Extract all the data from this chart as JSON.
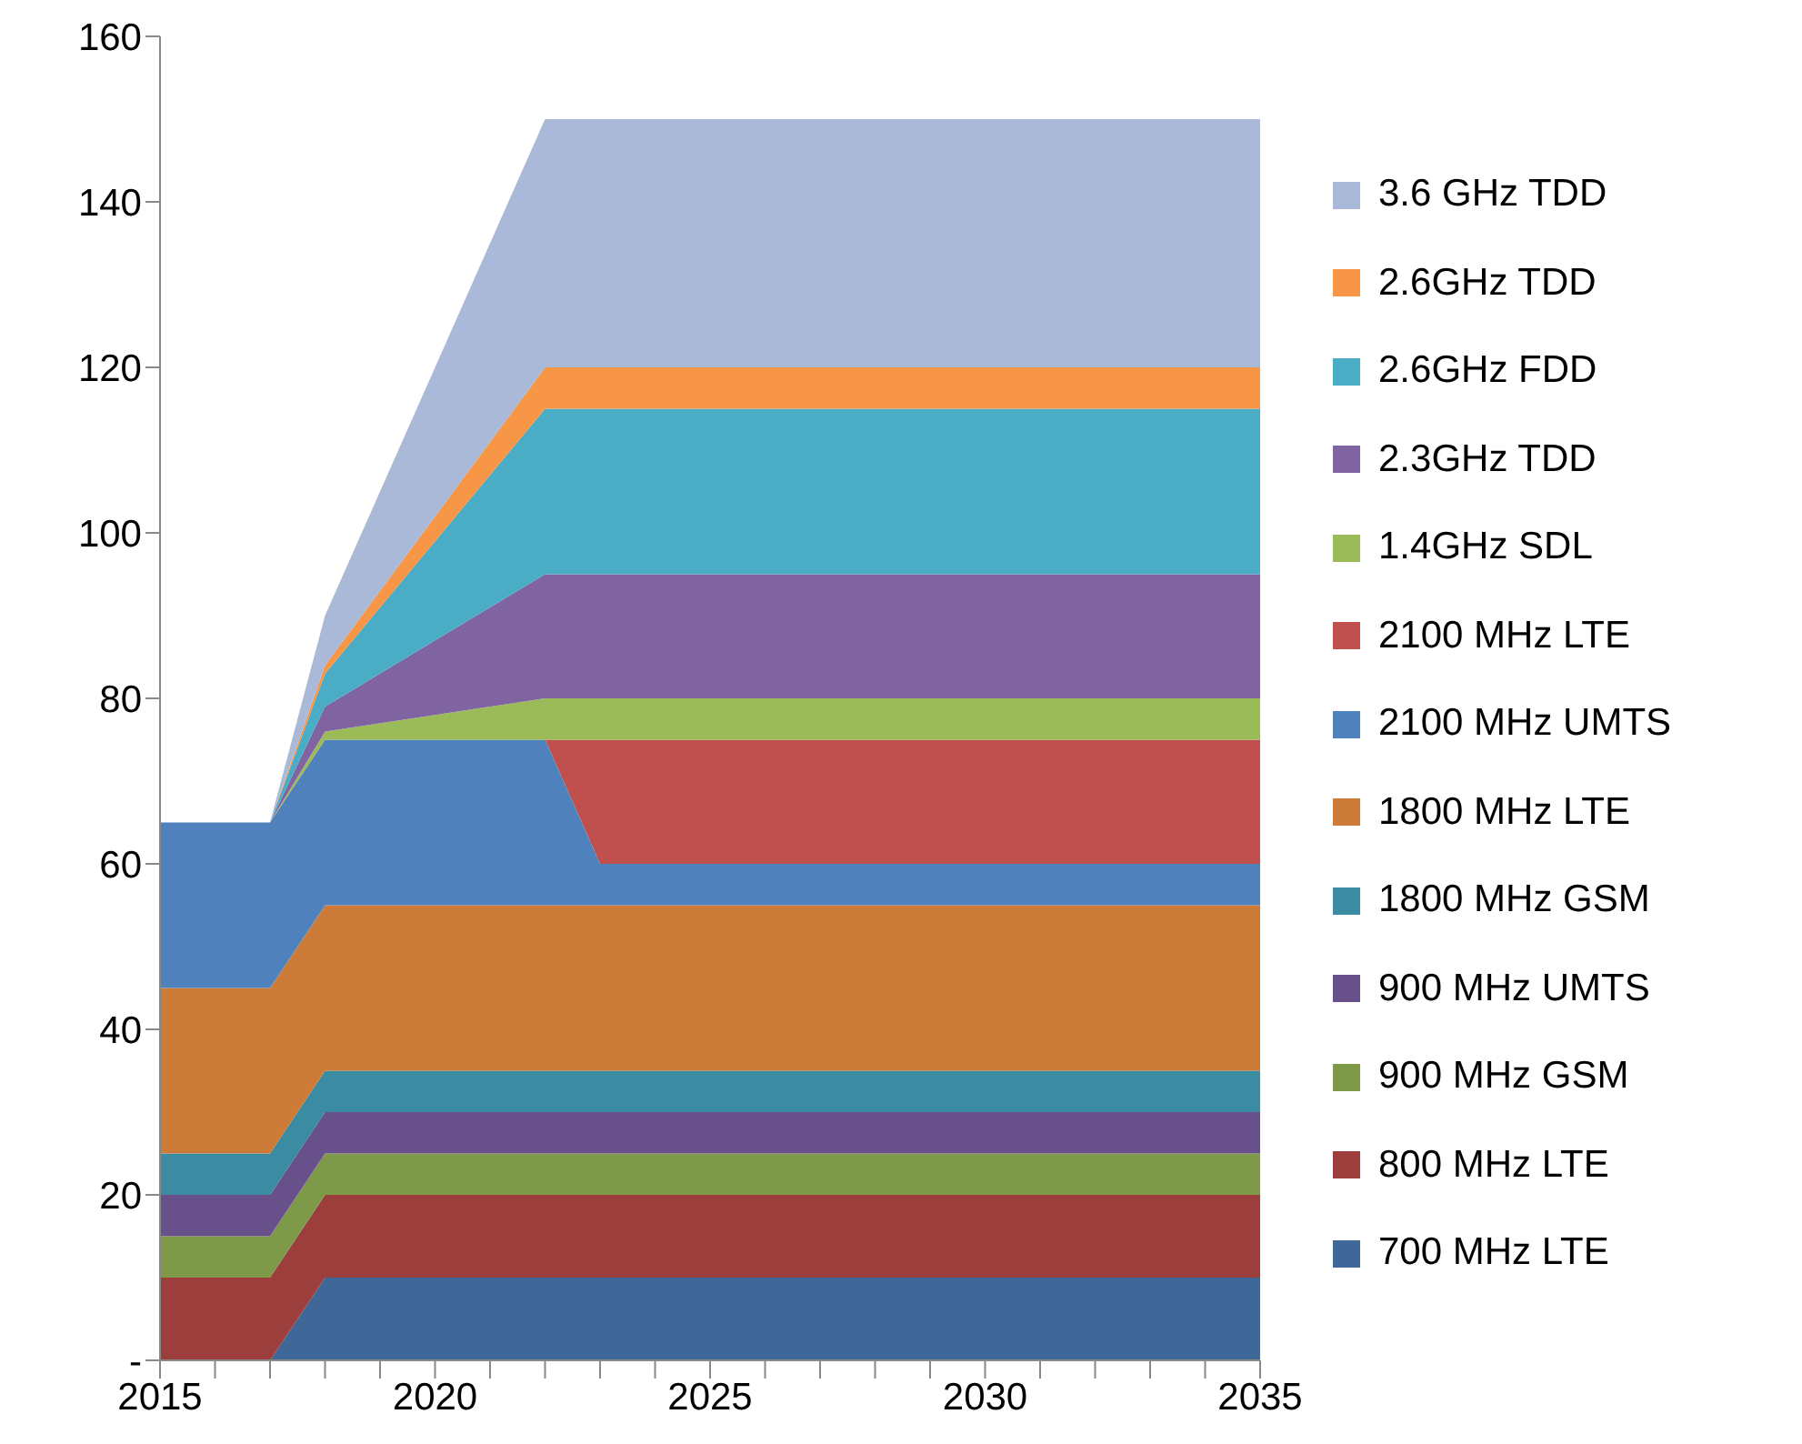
{
  "chart_data": {
    "type": "area",
    "stacked": true,
    "x": [
      2015,
      2017,
      2018,
      2022,
      2023,
      2035
    ],
    "series": [
      {
        "name": "700 MHz LTE",
        "color": "#3f6797",
        "values": [
          0,
          0,
          10,
          10,
          10,
          10
        ]
      },
      {
        "name": "800 MHz LTE",
        "color": "#9c3f3c",
        "values": [
          10,
          10,
          10,
          10,
          10,
          10
        ]
      },
      {
        "name": "900 MHz GSM",
        "color": "#7e9a48",
        "values": [
          5,
          5,
          5,
          5,
          5,
          5
        ]
      },
      {
        "name": "900 MHz UMTS",
        "color": "#68518a",
        "values": [
          5,
          5,
          5,
          5,
          5,
          5
        ]
      },
      {
        "name": "1800 MHz GSM",
        "color": "#3b8ca3",
        "values": [
          5,
          5,
          5,
          5,
          5,
          5
        ]
      },
      {
        "name": "1800 MHz LTE",
        "color": "#cc7b38",
        "values": [
          20,
          20,
          20,
          20,
          20,
          20
        ]
      },
      {
        "name": "2100 MHz UMTS",
        "color": "#4f81bd",
        "values": [
          20,
          20,
          20,
          20,
          5,
          5
        ]
      },
      {
        "name": "2100 MHz LTE",
        "color": "#c0504d",
        "values": [
          0,
          0,
          0,
          0,
          15,
          15
        ]
      },
      {
        "name": "1.4GHz SDL",
        "color": "#9bbb59",
        "values": [
          0,
          0,
          1,
          5,
          5,
          5
        ]
      },
      {
        "name": "2.3GHz TDD",
        "color": "#8064a2",
        "values": [
          0,
          0,
          3,
          15,
          15,
          15
        ]
      },
      {
        "name": "2.6GHz FDD",
        "color": "#4bacc6",
        "values": [
          0,
          0,
          4,
          20,
          20,
          20
        ]
      },
      {
        "name": "2.6GHz TDD",
        "color": "#f79646",
        "values": [
          0,
          0,
          1,
          5,
          5,
          5
        ]
      },
      {
        "name": "3.6 GHz TDD",
        "color": "#aab9d7",
        "values": [
          0,
          0,
          6,
          30,
          30,
          30
        ]
      }
    ],
    "xlim": [
      2015,
      2035
    ],
    "xticks": [
      2015,
      {
        "value": 2016,
        "label": null
      },
      {
        "value": 2017,
        "label": null
      },
      {
        "value": 2018,
        "label": null
      },
      {
        "value": 2019,
        "label": null
      },
      2020,
      {
        "value": 2021,
        "label": null
      },
      {
        "value": 2022,
        "label": null
      },
      {
        "value": 2023,
        "label": null
      },
      {
        "value": 2024,
        "label": null
      },
      2025,
      {
        "value": 2026,
        "label": null
      },
      {
        "value": 2027,
        "label": null
      },
      {
        "value": 2028,
        "label": null
      },
      {
        "value": 2029,
        "label": null
      },
      2030,
      {
        "value": 2031,
        "label": null
      },
      {
        "value": 2032,
        "label": null
      },
      {
        "value": 2033,
        "label": null
      },
      {
        "value": 2034,
        "label": null
      },
      2035
    ],
    "ylim": [
      0,
      160
    ],
    "yticks": [
      {
        "value": 0,
        "label": "-"
      },
      20,
      40,
      60,
      80,
      100,
      120,
      140,
      160
    ],
    "grid": false,
    "legend": "right"
  }
}
